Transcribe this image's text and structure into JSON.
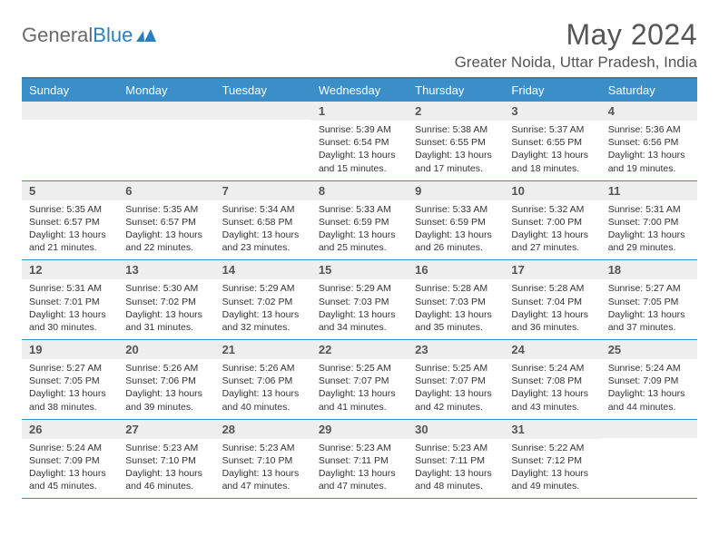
{
  "logo": {
    "text_gray": "General",
    "text_blue": "Blue"
  },
  "header": {
    "month_title": "May 2024",
    "location": "Greater Noida, Uttar Pradesh, India"
  },
  "day_names": [
    "Sunday",
    "Monday",
    "Tuesday",
    "Wednesday",
    "Thursday",
    "Friday",
    "Saturday"
  ],
  "colors": {
    "header_bar": "#3a8fc9",
    "divider": "#3a8fc9",
    "daynum_bg": "#eeeeee",
    "text_gray": "#555555",
    "logo_gray": "#6a6a6a",
    "logo_blue": "#2a7fbf"
  },
  "labels": {
    "sunrise": "Sunrise:",
    "sunset": "Sunset:",
    "daylight": "Daylight:"
  },
  "weeks": [
    [
      {
        "day": "",
        "sunrise": "",
        "sunset": "",
        "daylight": "",
        "empty": true
      },
      {
        "day": "",
        "sunrise": "",
        "sunset": "",
        "daylight": "",
        "empty": true
      },
      {
        "day": "",
        "sunrise": "",
        "sunset": "",
        "daylight": "",
        "empty": true
      },
      {
        "day": "1",
        "sunrise": "5:39 AM",
        "sunset": "6:54 PM",
        "daylight": "13 hours and 15 minutes."
      },
      {
        "day": "2",
        "sunrise": "5:38 AM",
        "sunset": "6:55 PM",
        "daylight": "13 hours and 17 minutes."
      },
      {
        "day": "3",
        "sunrise": "5:37 AM",
        "sunset": "6:55 PM",
        "daylight": "13 hours and 18 minutes."
      },
      {
        "day": "4",
        "sunrise": "5:36 AM",
        "sunset": "6:56 PM",
        "daylight": "13 hours and 19 minutes."
      }
    ],
    [
      {
        "day": "5",
        "sunrise": "5:35 AM",
        "sunset": "6:57 PM",
        "daylight": "13 hours and 21 minutes."
      },
      {
        "day": "6",
        "sunrise": "5:35 AM",
        "sunset": "6:57 PM",
        "daylight": "13 hours and 22 minutes."
      },
      {
        "day": "7",
        "sunrise": "5:34 AM",
        "sunset": "6:58 PM",
        "daylight": "13 hours and 23 minutes."
      },
      {
        "day": "8",
        "sunrise": "5:33 AM",
        "sunset": "6:59 PM",
        "daylight": "13 hours and 25 minutes."
      },
      {
        "day": "9",
        "sunrise": "5:33 AM",
        "sunset": "6:59 PM",
        "daylight": "13 hours and 26 minutes."
      },
      {
        "day": "10",
        "sunrise": "5:32 AM",
        "sunset": "7:00 PM",
        "daylight": "13 hours and 27 minutes."
      },
      {
        "day": "11",
        "sunrise": "5:31 AM",
        "sunset": "7:00 PM",
        "daylight": "13 hours and 29 minutes."
      }
    ],
    [
      {
        "day": "12",
        "sunrise": "5:31 AM",
        "sunset": "7:01 PM",
        "daylight": "13 hours and 30 minutes."
      },
      {
        "day": "13",
        "sunrise": "5:30 AM",
        "sunset": "7:02 PM",
        "daylight": "13 hours and 31 minutes."
      },
      {
        "day": "14",
        "sunrise": "5:29 AM",
        "sunset": "7:02 PM",
        "daylight": "13 hours and 32 minutes."
      },
      {
        "day": "15",
        "sunrise": "5:29 AM",
        "sunset": "7:03 PM",
        "daylight": "13 hours and 34 minutes."
      },
      {
        "day": "16",
        "sunrise": "5:28 AM",
        "sunset": "7:03 PM",
        "daylight": "13 hours and 35 minutes."
      },
      {
        "day": "17",
        "sunrise": "5:28 AM",
        "sunset": "7:04 PM",
        "daylight": "13 hours and 36 minutes."
      },
      {
        "day": "18",
        "sunrise": "5:27 AM",
        "sunset": "7:05 PM",
        "daylight": "13 hours and 37 minutes."
      }
    ],
    [
      {
        "day": "19",
        "sunrise": "5:27 AM",
        "sunset": "7:05 PM",
        "daylight": "13 hours and 38 minutes."
      },
      {
        "day": "20",
        "sunrise": "5:26 AM",
        "sunset": "7:06 PM",
        "daylight": "13 hours and 39 minutes."
      },
      {
        "day": "21",
        "sunrise": "5:26 AM",
        "sunset": "7:06 PM",
        "daylight": "13 hours and 40 minutes."
      },
      {
        "day": "22",
        "sunrise": "5:25 AM",
        "sunset": "7:07 PM",
        "daylight": "13 hours and 41 minutes."
      },
      {
        "day": "23",
        "sunrise": "5:25 AM",
        "sunset": "7:07 PM",
        "daylight": "13 hours and 42 minutes."
      },
      {
        "day": "24",
        "sunrise": "5:24 AM",
        "sunset": "7:08 PM",
        "daylight": "13 hours and 43 minutes."
      },
      {
        "day": "25",
        "sunrise": "5:24 AM",
        "sunset": "7:09 PM",
        "daylight": "13 hours and 44 minutes."
      }
    ],
    [
      {
        "day": "26",
        "sunrise": "5:24 AM",
        "sunset": "7:09 PM",
        "daylight": "13 hours and 45 minutes."
      },
      {
        "day": "27",
        "sunrise": "5:23 AM",
        "sunset": "7:10 PM",
        "daylight": "13 hours and 46 minutes."
      },
      {
        "day": "28",
        "sunrise": "5:23 AM",
        "sunset": "7:10 PM",
        "daylight": "13 hours and 47 minutes."
      },
      {
        "day": "29",
        "sunrise": "5:23 AM",
        "sunset": "7:11 PM",
        "daylight": "13 hours and 47 minutes."
      },
      {
        "day": "30",
        "sunrise": "5:23 AM",
        "sunset": "7:11 PM",
        "daylight": "13 hours and 48 minutes."
      },
      {
        "day": "31",
        "sunrise": "5:22 AM",
        "sunset": "7:12 PM",
        "daylight": "13 hours and 49 minutes."
      },
      {
        "day": "",
        "sunrise": "",
        "sunset": "",
        "daylight": "",
        "empty": true
      }
    ]
  ]
}
